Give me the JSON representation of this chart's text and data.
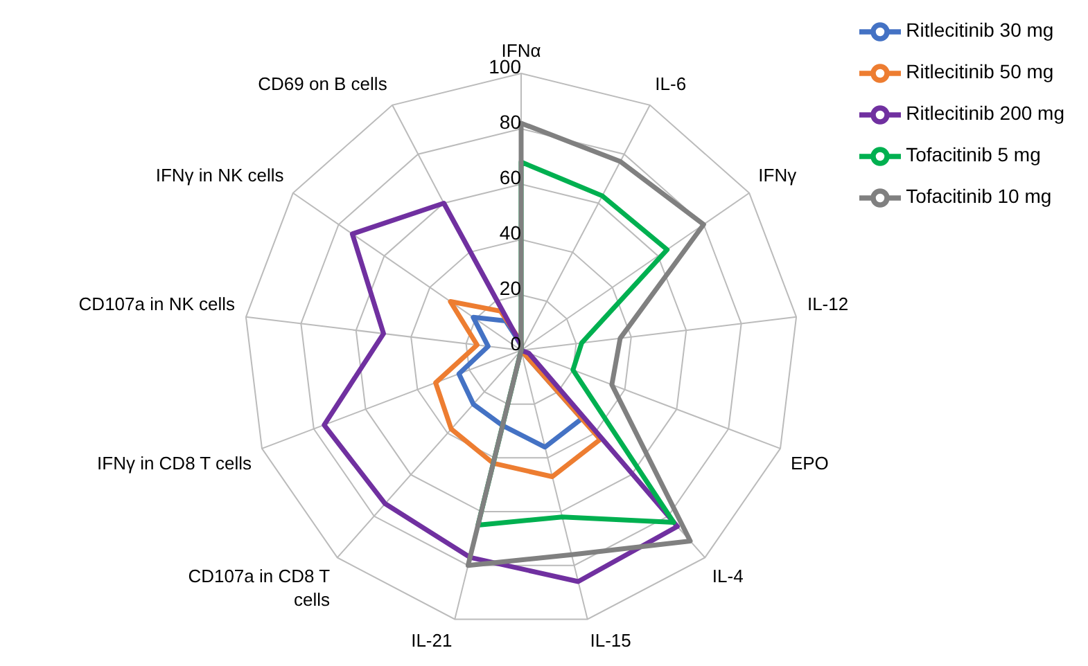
{
  "chart_data": {
    "type": "radar",
    "categories": [
      "IFNα",
      "IL-6",
      "IFNγ",
      "IL-12",
      "EPO",
      "IL-4",
      "IL-15",
      "IL-21",
      "CD107a in CD8 T cells",
      "IFNγ in CD8 T cells",
      "CD107a in NK cells",
      "IFNγ in NK cells",
      "CD69 on B cells"
    ],
    "ylim": [
      0,
      100
    ],
    "yticks": [
      0,
      20,
      40,
      60,
      80,
      100
    ],
    "grid": true,
    "legend": "top right",
    "marker": "none",
    "line_style": "solid",
    "series": [
      {
        "name": "Ritlecitinib 30 mg",
        "color": "#4472c4",
        "values": [
          2,
          0,
          0,
          0,
          0,
          33,
          36,
          28,
          26,
          24,
          12,
          21,
          12
        ]
      },
      {
        "name": "Ritlecitinib 50 mg",
        "color": "#ed7d31",
        "values": [
          3,
          0,
          0,
          0,
          0,
          43,
          47,
          42,
          38,
          33,
          16,
          31,
          16
        ]
      },
      {
        "name": "Ritlecitinib 200 mg",
        "color": "#7030a0",
        "values": [
          2,
          0,
          0,
          0,
          3,
          85,
          86,
          77,
          74,
          76,
          50,
          74,
          60
        ]
      },
      {
        "name": "Tofacitinib 5 mg",
        "color": "#00b050",
        "values": [
          68,
          63,
          64,
          22,
          20,
          83,
          62,
          65,
          0,
          0,
          0,
          0,
          0
        ]
      },
      {
        "name": "Tofacitinib 10 mg",
        "color": "#808080",
        "values": [
          82,
          77,
          80,
          36,
          35,
          92,
          76,
          80,
          0,
          0,
          0,
          0,
          0
        ]
      }
    ]
  }
}
